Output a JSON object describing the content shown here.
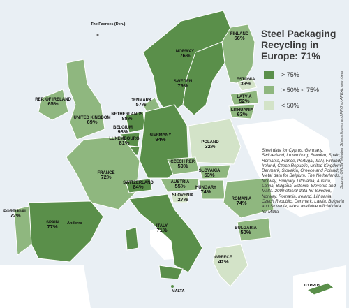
{
  "title": "Steel Packaging Recycling in Europe: 71%",
  "legend": [
    {
      "label": "> 75%",
      "color": "#5a8f4a"
    },
    {
      "label": "> 50% < 75%",
      "color": "#8fb77f"
    },
    {
      "label": "< 50%",
      "color": "#d3e3c8"
    }
  ],
  "colors": {
    "sea": "#ffffff",
    "nonmember": "#ffffff",
    "border": "#ffffff"
  },
  "countries": [
    {
      "name": "FINLAND",
      "value": "66%"
    },
    {
      "name": "NORWAY",
      "value": "76%"
    },
    {
      "name": "SWEDEN",
      "value": "79%"
    },
    {
      "name": "ESTONIA",
      "value": "39%"
    },
    {
      "name": "LATVIA",
      "value": "52%"
    },
    {
      "name": "LITHUANIA",
      "value": "63%"
    },
    {
      "name": "DENMARK",
      "value": "57%"
    },
    {
      "name": "REP. OF IRELAND",
      "value": "65%"
    },
    {
      "name": "UNITED KINGDOM",
      "value": "69%"
    },
    {
      "name": "NETHERLANDS",
      "value": "88%"
    },
    {
      "name": "BELGIUM",
      "value": "98%"
    },
    {
      "name": "LUXEMBOURG",
      "value": "81%"
    },
    {
      "name": "GERMANY",
      "value": "94%"
    },
    {
      "name": "POLAND",
      "value": "32%"
    },
    {
      "name": "CZECH REP.",
      "value": "59%"
    },
    {
      "name": "SLOVAKIA",
      "value": "53%"
    },
    {
      "name": "FRANCE",
      "value": "72%"
    },
    {
      "name": "SWITZERLAND",
      "value": "84%"
    },
    {
      "name": "AUSTRIA",
      "value": "55%"
    },
    {
      "name": "HUNGARY",
      "value": "74%"
    },
    {
      "name": "SLOVENIA",
      "value": "27%"
    },
    {
      "name": "ROMANIA",
      "value": "74%"
    },
    {
      "name": "PORTUGAL",
      "value": "72%"
    },
    {
      "name": "SPAIN",
      "value": "77%"
    },
    {
      "name": "ITALY",
      "value": "71%"
    },
    {
      "name": "BULGARIA",
      "value": "50%"
    },
    {
      "name": "GREECE",
      "value": "42%"
    }
  ],
  "place_labels": [
    "The Faeroes (Den.)",
    "Andorra",
    "MALTA",
    "CYPRUS"
  ],
  "footnote": "Steel data for Cyprus, Germany, Switzerland, Luxemburg, Sweden, Spain, Romania, France, Portugal, Italy, Finland, Ireland, Czech Republic, United Kingdom, Denmark, Slovakia, Greece and Poland; Metal data for Belgium, The Netherlands, Norway, Hungary, Lithuania, Austria, Latvia, Bulgaria, Estonia, Slovenia and Malta. 2009 official data for Sweden, Norway, Romania, Ireland, Lithuania, Czech Republic, Denmark, Latvia, Bulgaria and Slovenia, latest available official data for Malta.",
  "source": "Source: Official Member States figures and PRO's / APEAL members"
}
